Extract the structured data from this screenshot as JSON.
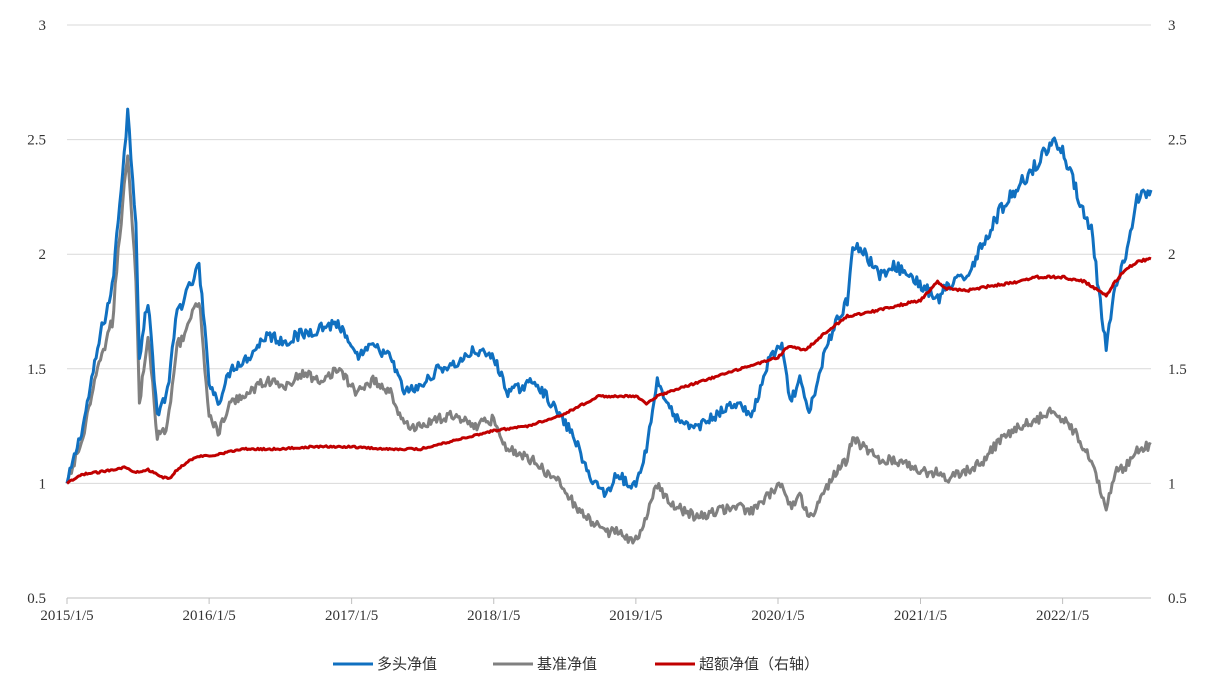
{
  "chart_data": {
    "type": "line",
    "title": "",
    "xlabel": "",
    "ylabel": "",
    "y2label": "",
    "ylim": [
      0.5,
      3
    ],
    "y2lim": [
      0.5,
      3
    ],
    "yticks": [
      "3",
      "2.5",
      "2",
      "1.5",
      "1",
      "0.5"
    ],
    "y2ticks": [
      "3",
      "2.5",
      "2",
      "1.5",
      "1",
      "0.5"
    ],
    "xlim": [
      "2015-01-05",
      "2022-08-20"
    ],
    "xticks": [
      "2015/1/5",
      "2016/1/5",
      "2017/1/5",
      "2018/1/5",
      "2019/1/5",
      "2020/1/5",
      "2021/1/5",
      "2022/1/5"
    ],
    "grid": "horizontal",
    "legend_position": "bottom",
    "series": [
      {
        "name": "多头净值",
        "color": "#1070C0",
        "axis": "left",
        "x": [
          "2015-01-05",
          "2015-02-15",
          "2015-04-01",
          "2015-05-01",
          "2015-06-01",
          "2015-06-10",
          "2015-07-01",
          "2015-07-10",
          "2015-08-01",
          "2015-08-25",
          "2015-09-20",
          "2015-10-15",
          "2015-11-15",
          "2015-12-10",
          "2016-01-05",
          "2016-01-28",
          "2016-03-01",
          "2016-04-15",
          "2016-06-01",
          "2016-07-15",
          "2016-09-01",
          "2016-10-15",
          "2016-12-01",
          "2017-01-15",
          "2017-03-01",
          "2017-04-15",
          "2017-05-20",
          "2017-07-01",
          "2017-08-15",
          "2017-10-01",
          "2017-11-15",
          "2018-01-05",
          "2018-02-10",
          "2018-03-20",
          "2018-04-20",
          "2018-05-20",
          "2018-06-30",
          "2018-08-01",
          "2018-09-01",
          "2018-10-20",
          "2018-11-20",
          "2018-12-20",
          "2019-01-05",
          "2019-02-01",
          "2019-03-01",
          "2019-04-10",
          "2019-05-10",
          "2019-06-15",
          "2019-08-01",
          "2019-09-15",
          "2019-11-01",
          "2019-12-15",
          "2020-01-15",
          "2020-02-05",
          "2020-03-01",
          "2020-03-25",
          "2020-05-01",
          "2020-06-01",
          "2020-07-01",
          "2020-07-15",
          "2020-08-15",
          "2020-09-30",
          "2020-11-01",
          "2020-12-15",
          "2021-01-15",
          "2021-02-18",
          "2021-03-10",
          "2021-05-01",
          "2021-06-15",
          "2021-08-01",
          "2021-09-15",
          "2021-11-01",
          "2021-12-15",
          "2022-01-05",
          "2022-02-15",
          "2022-03-20",
          "2022-04-27",
          "2022-05-20",
          "2022-06-20",
          "2022-07-15",
          "2022-08-20"
        ],
        "values": [
          1.0,
          1.25,
          1.65,
          1.85,
          2.45,
          2.62,
          2.15,
          1.55,
          1.8,
          1.3,
          1.4,
          1.75,
          1.85,
          1.95,
          1.45,
          1.35,
          1.5,
          1.55,
          1.65,
          1.62,
          1.65,
          1.68,
          1.7,
          1.55,
          1.6,
          1.55,
          1.4,
          1.42,
          1.5,
          1.52,
          1.58,
          1.55,
          1.4,
          1.42,
          1.45,
          1.38,
          1.28,
          1.2,
          1.05,
          0.95,
          1.05,
          0.98,
          1.0,
          1.15,
          1.45,
          1.3,
          1.25,
          1.25,
          1.3,
          1.35,
          1.3,
          1.55,
          1.6,
          1.35,
          1.45,
          1.3,
          1.55,
          1.7,
          1.8,
          2.05,
          2.0,
          1.9,
          1.95,
          1.9,
          1.85,
          1.8,
          1.85,
          1.9,
          2.05,
          2.2,
          2.3,
          2.4,
          2.5,
          2.45,
          2.25,
          2.1,
          1.58,
          1.85,
          2.0,
          2.25,
          2.28
        ]
      },
      {
        "name": "基准净值",
        "color": "#808080",
        "axis": "left",
        "x": [
          "2015-01-05",
          "2015-02-15",
          "2015-04-01",
          "2015-05-01",
          "2015-06-01",
          "2015-06-10",
          "2015-07-01",
          "2015-07-10",
          "2015-08-01",
          "2015-08-25",
          "2015-09-20",
          "2015-10-15",
          "2015-11-15",
          "2015-12-10",
          "2016-01-05",
          "2016-01-28",
          "2016-03-01",
          "2016-04-15",
          "2016-06-01",
          "2016-07-15",
          "2016-09-01",
          "2016-10-15",
          "2016-12-01",
          "2017-01-15",
          "2017-03-01",
          "2017-04-15",
          "2017-05-20",
          "2017-07-01",
          "2017-08-15",
          "2017-10-01",
          "2017-11-15",
          "2018-01-05",
          "2018-02-10",
          "2018-03-20",
          "2018-04-20",
          "2018-05-20",
          "2018-06-30",
          "2018-08-01",
          "2018-09-01",
          "2018-10-20",
          "2018-11-20",
          "2018-12-20",
          "2019-01-05",
          "2019-02-01",
          "2019-03-01",
          "2019-04-10",
          "2019-05-10",
          "2019-06-15",
          "2019-08-01",
          "2019-09-15",
          "2019-11-01",
          "2019-12-15",
          "2020-01-15",
          "2020-02-05",
          "2020-03-01",
          "2020-03-25",
          "2020-05-01",
          "2020-06-01",
          "2020-07-01",
          "2020-07-15",
          "2020-08-15",
          "2020-09-30",
          "2020-11-01",
          "2020-12-15",
          "2021-01-15",
          "2021-02-18",
          "2021-03-10",
          "2021-05-01",
          "2021-06-15",
          "2021-08-01",
          "2021-09-15",
          "2021-11-01",
          "2021-12-15",
          "2022-01-05",
          "2022-02-15",
          "2022-03-20",
          "2022-04-27",
          "2022-05-20",
          "2022-06-20",
          "2022-07-15",
          "2022-08-20"
        ],
        "values": [
          1.0,
          1.2,
          1.55,
          1.7,
          2.3,
          2.45,
          1.9,
          1.35,
          1.65,
          1.2,
          1.25,
          1.6,
          1.7,
          1.8,
          1.3,
          1.22,
          1.35,
          1.4,
          1.45,
          1.42,
          1.48,
          1.45,
          1.5,
          1.4,
          1.45,
          1.4,
          1.25,
          1.25,
          1.28,
          1.3,
          1.25,
          1.28,
          1.15,
          1.12,
          1.1,
          1.05,
          1.0,
          0.9,
          0.85,
          0.78,
          0.8,
          0.75,
          0.75,
          0.85,
          1.0,
          0.9,
          0.88,
          0.85,
          0.88,
          0.9,
          0.88,
          0.95,
          1.0,
          0.9,
          0.95,
          0.85,
          0.95,
          1.05,
          1.1,
          1.2,
          1.15,
          1.1,
          1.1,
          1.08,
          1.05,
          1.05,
          1.02,
          1.05,
          1.1,
          1.2,
          1.25,
          1.28,
          1.32,
          1.28,
          1.2,
          1.1,
          0.9,
          1.05,
          1.08,
          1.15,
          1.17
        ]
      },
      {
        "name": "超额净值（右轴）",
        "color": "#C00000",
        "axis": "right",
        "x": [
          "2015-01-05",
          "2015-02-15",
          "2015-04-01",
          "2015-05-01",
          "2015-06-01",
          "2015-07-01",
          "2015-08-01",
          "2015-09-01",
          "2015-09-25",
          "2015-10-15",
          "2015-11-15",
          "2015-12-15",
          "2016-01-05",
          "2016-04-01",
          "2016-07-01",
          "2016-10-01",
          "2017-01-05",
          "2017-04-01",
          "2017-07-01",
          "2017-10-01",
          "2018-01-05",
          "2018-04-01",
          "2018-07-01",
          "2018-10-01",
          "2019-01-05",
          "2019-02-01",
          "2019-03-01",
          "2019-04-01",
          "2019-07-01",
          "2019-10-01",
          "2020-01-05",
          "2020-02-01",
          "2020-03-15",
          "2020-05-01",
          "2020-07-01",
          "2020-10-01",
          "2021-01-05",
          "2021-02-18",
          "2021-03-10",
          "2021-05-01",
          "2021-07-01",
          "2021-09-15",
          "2021-11-01",
          "2022-01-05",
          "2022-03-01",
          "2022-04-27",
          "2022-05-20",
          "2022-06-20",
          "2022-07-20",
          "2022-08-20"
        ],
        "values": [
          1.0,
          1.04,
          1.05,
          1.06,
          1.07,
          1.05,
          1.06,
          1.03,
          1.02,
          1.06,
          1.1,
          1.12,
          1.12,
          1.15,
          1.15,
          1.16,
          1.16,
          1.15,
          1.15,
          1.19,
          1.23,
          1.25,
          1.3,
          1.38,
          1.38,
          1.35,
          1.38,
          1.4,
          1.45,
          1.5,
          1.55,
          1.6,
          1.58,
          1.65,
          1.73,
          1.76,
          1.8,
          1.88,
          1.85,
          1.84,
          1.86,
          1.88,
          1.9,
          1.9,
          1.88,
          1.82,
          1.88,
          1.94,
          1.97,
          1.98
        ]
      }
    ]
  }
}
